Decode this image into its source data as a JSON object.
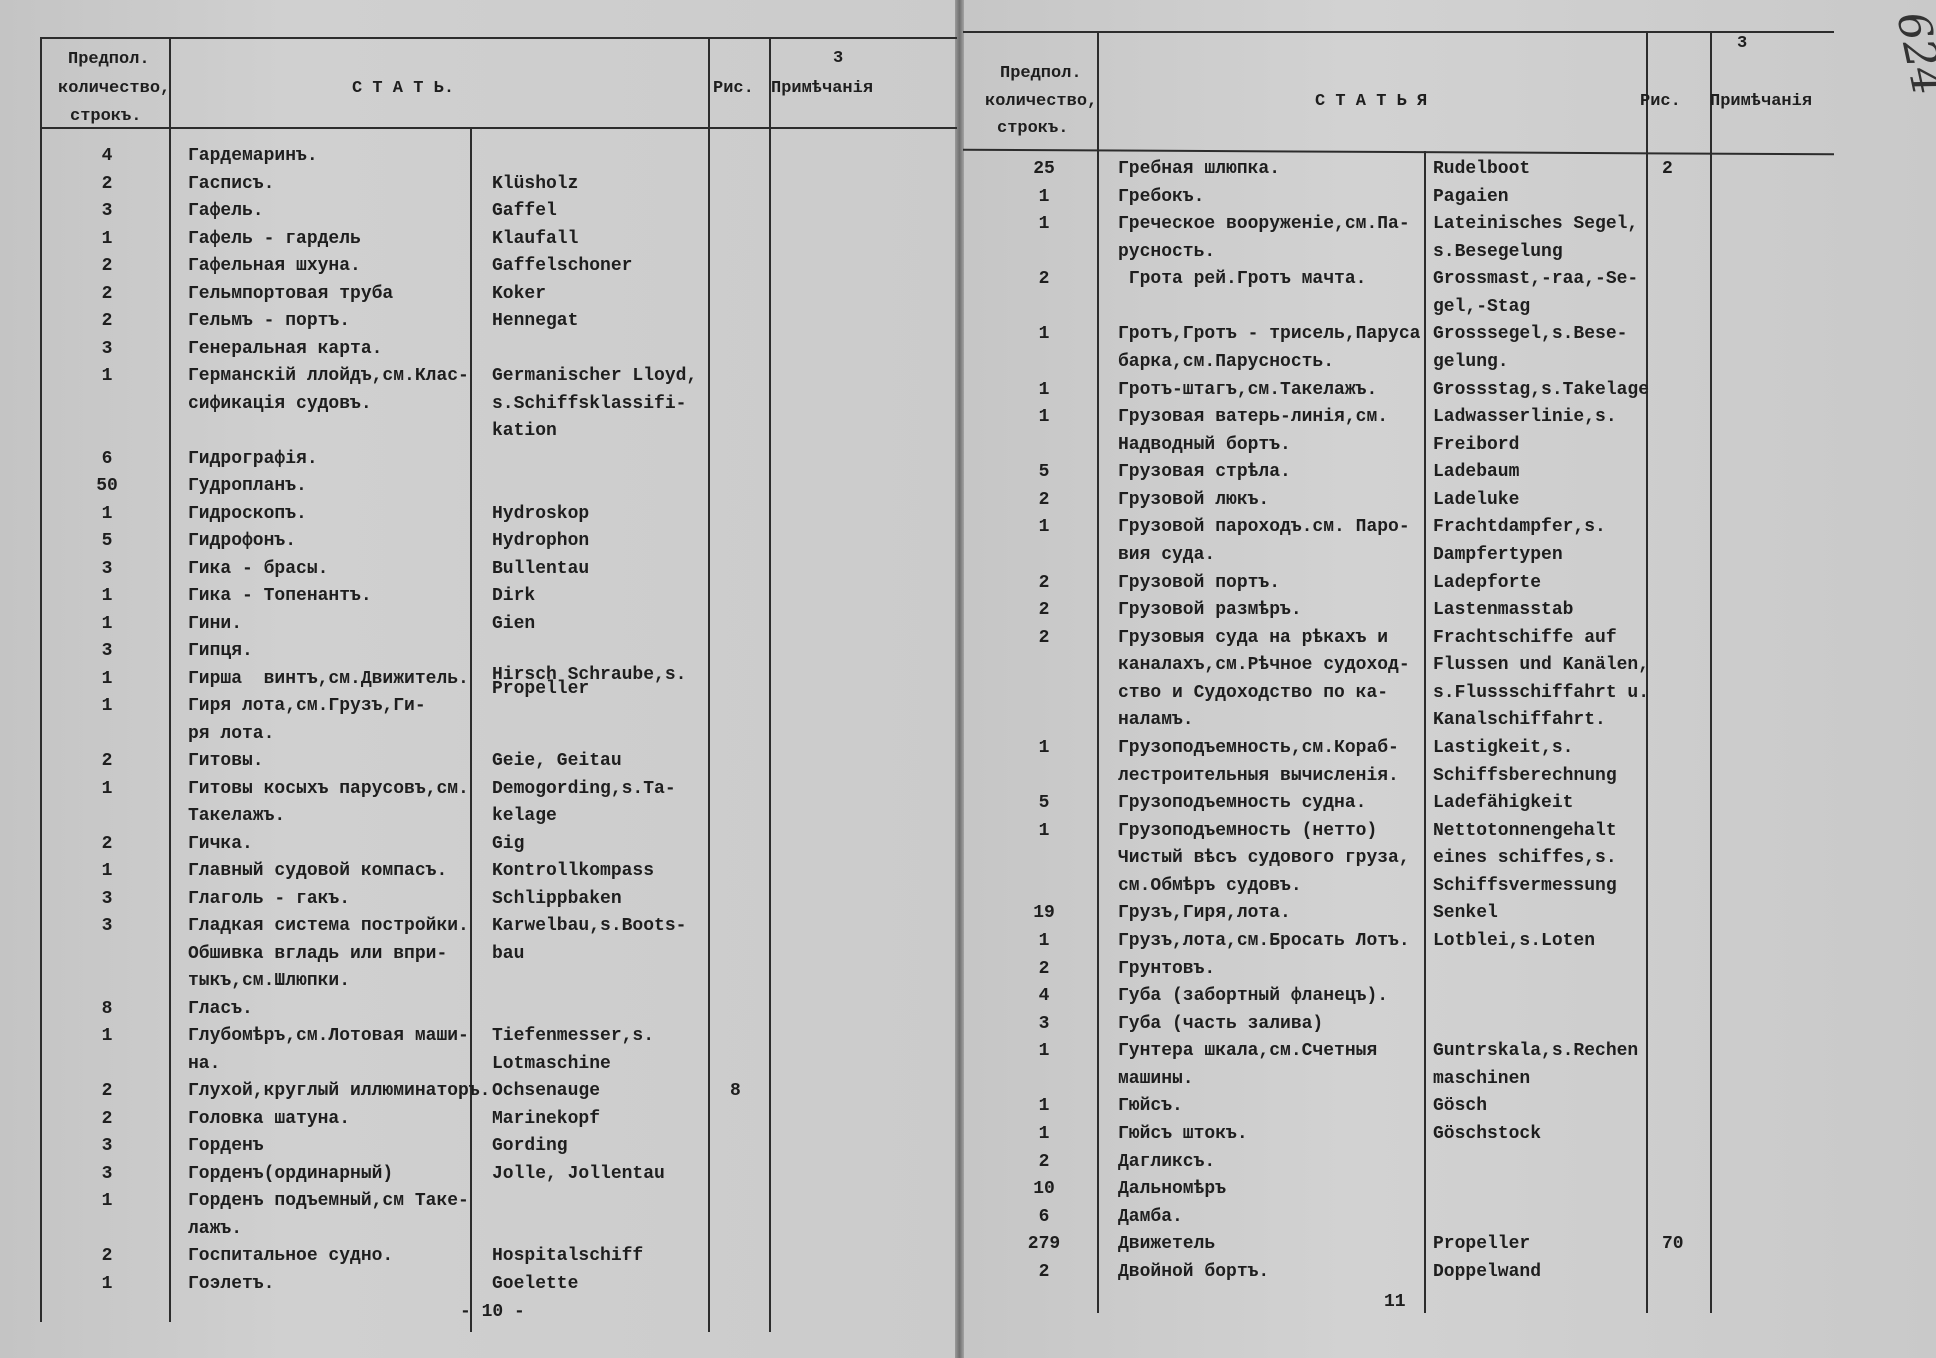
{
  "left": {
    "header": {
      "col_count": [
        "Предпол.",
        "количество,",
        "строкъ."
      ],
      "col_article": "С Т А Т Ь.",
      "col_fig": "Рис.",
      "col_notes_num": "3",
      "col_notes": "Примѣчанiя"
    },
    "page_number": "- 10 -",
    "entries": [
      {
        "n": "4",
        "ru": [
          "Гардемаринъ."
        ],
        "de": []
      },
      {
        "n": "2",
        "ru": [
          "Гасписъ."
        ],
        "de": [
          "Klüsholz"
        ]
      },
      {
        "n": "3",
        "ru": [
          "Гафель."
        ],
        "de": [
          "Gaffel"
        ]
      },
      {
        "n": "1",
        "ru": [
          "Гафель - гардель"
        ],
        "de": [
          "Klaufall"
        ]
      },
      {
        "n": "2",
        "ru": [
          "Гафельная шхуна."
        ],
        "de": [
          "Gaffelschoner"
        ]
      },
      {
        "n": "2",
        "ru": [
          "Гельмпортовая труба"
        ],
        "de": [
          "Koker"
        ]
      },
      {
        "n": "2",
        "ru": [
          "Гельмъ - портъ."
        ],
        "de": [
          "Hennegat"
        ]
      },
      {
        "n": "3",
        "ru": [
          "Генеральная карта."
        ],
        "de": []
      },
      {
        "n": "1",
        "ru": [
          "Германскiй ллойдъ,см.Клас-",
          "сификацiя судовъ."
        ],
        "de": [
          "Germanischer Lloyd,",
          "s.Schiffsklassifi-",
          "kation"
        ]
      },
      {
        "n": "6",
        "ru": [
          "Гидрографiя."
        ],
        "de": []
      },
      {
        "n": "50",
        "ru": [
          "Гудропланъ."
        ],
        "de": []
      },
      {
        "n": "1",
        "ru": [
          "Гидроскопъ."
        ],
        "de": [
          "Hydroskop"
        ]
      },
      {
        "n": "5",
        "ru": [
          "Гидрофонъ."
        ],
        "de": [
          "Hydrophon"
        ]
      },
      {
        "n": "3",
        "ru": [
          "Гика - брасы."
        ],
        "de": [
          "Bullentau"
        ]
      },
      {
        "n": "1",
        "ru": [
          "Гика - Топенантъ."
        ],
        "de": [
          "Dirk"
        ]
      },
      {
        "n": "1",
        "ru": [
          "Гини."
        ],
        "de": [
          "Gien"
        ]
      },
      {
        "n": "3",
        "ru": [
          "Гипця."
        ],
        "de": []
      },
      {
        "n": "1",
        "ru": [
          "Гирша  винтъ,см.Движитель."
        ],
        "de": [
          "Hirsch Schraube,s.\nPropeller"
        ]
      },
      {
        "n": "1",
        "ru": [
          "Гиря лота,см.Грузъ,Ги-",
          "ря лота."
        ],
        "de": []
      },
      {
        "n": "2",
        "ru": [
          "Гитовы."
        ],
        "de": [
          "Geie, Geitau"
        ]
      },
      {
        "n": "1",
        "ru": [
          "Гитовы косыхъ парусовъ,см.",
          "Такелажъ."
        ],
        "de": [
          "Demogording,s.Ta-",
          "kelage"
        ]
      },
      {
        "n": "2",
        "ru": [
          "Гичка."
        ],
        "de": [
          "Gig"
        ]
      },
      {
        "n": "1",
        "ru": [
          "Главный судовой компасъ."
        ],
        "de": [
          "Kontrollkompass"
        ]
      },
      {
        "n": "3",
        "ru": [
          "Глаголь - гакъ."
        ],
        "de": [
          "Schlippbaken"
        ]
      },
      {
        "n": "3",
        "ru": [
          "Гладкая система постройки.",
          "Обшивка вгладь или впри-",
          "тыкъ,см.Шлюпки."
        ],
        "de": [
          "Karwelbau,s.Boots-",
          "bau"
        ]
      },
      {
        "n": "8",
        "ru": [
          "Гласъ."
        ],
        "de": []
      },
      {
        "n": "1",
        "ru": [
          "Глубомѣръ,см.Лотовая маши-",
          "на."
        ],
        "de": [
          "Tiefenmesser,s.",
          "Lotmaschine"
        ]
      },
      {
        "n": "2",
        "ru": [
          "Глухой,круглый иллюминаторъ."
        ],
        "de": [
          "Ochsenauge"
        ],
        "fig": "8"
      },
      {
        "n": "2",
        "ru": [
          "Головка шатуна."
        ],
        "de": [
          "Marinekopf"
        ]
      },
      {
        "n": "3",
        "ru": [
          "Горденъ"
        ],
        "de": [
          "Gording"
        ]
      },
      {
        "n": "3",
        "ru": [
          "Горденъ(ординарный)"
        ],
        "de": [
          "Jolle, Jollentau"
        ]
      },
      {
        "n": "1",
        "ru": [
          "Горденъ подъемный,см Таке-",
          "лажъ."
        ],
        "de": []
      },
      {
        "n": "2",
        "ru": [
          "Госпитальное судно."
        ],
        "de": [
          "Hospitalschiff"
        ]
      },
      {
        "n": "1",
        "ru": [
          "Гоэлетъ."
        ],
        "de": [
          "Goelette"
        ]
      }
    ]
  },
  "right": {
    "header": {
      "col_count": [
        "Предпол.",
        "количество,",
        "строкъ."
      ],
      "col_article": "С Т А Т Ь Я",
      "col_fig": "Рис.",
      "col_notes_num": "3",
      "col_notes": "Примѣчанiя"
    },
    "page_number": "11",
    "folio_handwritten": "624",
    "entries": [
      {
        "n": "25",
        "ru": [
          "Гребная шлюпка."
        ],
        "de": [
          "Rudelboot"
        ],
        "fig": "2"
      },
      {
        "n": "1",
        "ru": [
          "Гребокъ."
        ],
        "de": [
          "Pagaien"
        ]
      },
      {
        "n": "1",
        "ru": [
          "Греческое вооруженiе,см.Па-",
          "русность."
        ],
        "de": [
          "Lateinisches Segel,",
          "s.Besegelung"
        ]
      },
      {
        "n": "2",
        "ru": [
          " Грота рей.Гротъ мачта."
        ],
        "de": [
          "Grossmast,-raa,-Se-",
          "gel,-Stag"
        ]
      },
      {
        "n": "1",
        "ru": [
          "Гротъ,Гротъ - трисель,Паруса",
          "барка,см.Парусность."
        ],
        "de": [
          "Grosssegel,s.Bese-",
          "gelung."
        ]
      },
      {
        "n": "1",
        "ru": [
          "Гротъ-штагъ,см.Такелажъ."
        ],
        "de": [
          "Grossstag,s.Takelage"
        ]
      },
      {
        "n": "1",
        "ru": [
          "Грузовая ватерь-линiя,см.",
          "Надводный бортъ."
        ],
        "de": [
          "Ladwasserlinie,s.",
          "Freibord"
        ]
      },
      {
        "n": "5",
        "ru": [
          "Грузовая стрѣла."
        ],
        "de": [
          "Ladebaum"
        ]
      },
      {
        "n": "2",
        "ru": [
          "Грузовой люкъ."
        ],
        "de": [
          "Ladeluke"
        ]
      },
      {
        "n": "1",
        "ru": [
          "Грузовой пароходъ.см. Паро-",
          "вия суда."
        ],
        "de": [
          "Frachtdampfer,s.",
          "Dampfertypen"
        ]
      },
      {
        "n": "2",
        "ru": [
          "Грузовой портъ."
        ],
        "de": [
          "Ladepforte"
        ]
      },
      {
        "n": "2",
        "ru": [
          "Грузовой размѣръ."
        ],
        "de": [
          "Lastenmasstab"
        ]
      },
      {
        "n": "2",
        "ru": [
          "Грузовыя суда на рѣкахъ и",
          "каналахъ,см.Рѣчное судоход-",
          "ство и Судоходство по ка-",
          "наламъ."
        ],
        "de": [
          "Frachtschiffe auf",
          "Flussen und Kanälen,",
          "s.Flussschiffahrt u.",
          "Kanalschiffahrt."
        ]
      },
      {
        "n": "1",
        "ru": [
          "Грузоподъемность,см.Кораб-",
          "лестроительныя вычисленiя."
        ],
        "de": [
          "Lastigkeit,s.",
          "Schiffsberechnung"
        ]
      },
      {
        "n": "5",
        "ru": [
          "Грузоподъемность судна."
        ],
        "de": [
          "Ladefähigkeit"
        ]
      },
      {
        "n": "1",
        "ru": [
          "Грузоподъемность (нетто)",
          "Чистый вѣсъ судового груза,",
          "см.Обмѣръ судовъ."
        ],
        "de": [
          "Nettotonnengehalt",
          "eines schiffes,s.",
          "Schiffsvermessung"
        ]
      },
      {
        "n": "19",
        "ru": [
          "Грузъ,Гиря,лота."
        ],
        "de": [
          "Senkel"
        ]
      },
      {
        "n": "1",
        "ru": [
          "Грузъ,лота,см.Бросать Лотъ."
        ],
        "de": [
          "Lotblei,s.Loten"
        ]
      },
      {
        "n": "2",
        "ru": [
          "Грунтовъ."
        ],
        "de": []
      },
      {
        "n": "4",
        "ru": [
          "Губа (забортный фланецъ)."
        ],
        "de": []
      },
      {
        "n": "3",
        "ru": [
          "Губа (часть залива)"
        ],
        "de": []
      },
      {
        "n": "1",
        "ru": [
          "Гунтера шкала,см.Счетныя",
          "машины."
        ],
        "de": [
          "Guntrskala,s.Rechen",
          "maschinen"
        ]
      },
      {
        "n": "1",
        "ru": [
          "Гюйсъ."
        ],
        "de": [
          "Gösch"
        ]
      },
      {
        "n": "1",
        "ru": [
          "Гюйсъ штокъ."
        ],
        "de": [
          "Göschstock"
        ]
      },
      {
        "n": "2",
        "ru": [
          "Дагликсъ."
        ],
        "de": []
      },
      {
        "n": "10",
        "ru": [
          "Дальномѣръ"
        ],
        "de": []
      },
      {
        "n": "6",
        "ru": [
          "Дамба."
        ],
        "de": []
      },
      {
        "n": "279",
        "ru": [
          "Движетель"
        ],
        "de": [
          "Propeller"
        ],
        "fig": "70"
      },
      {
        "n": "2",
        "ru": [
          "Двойной бортъ."
        ],
        "de": [
          "Doppelwand"
        ]
      }
    ]
  }
}
